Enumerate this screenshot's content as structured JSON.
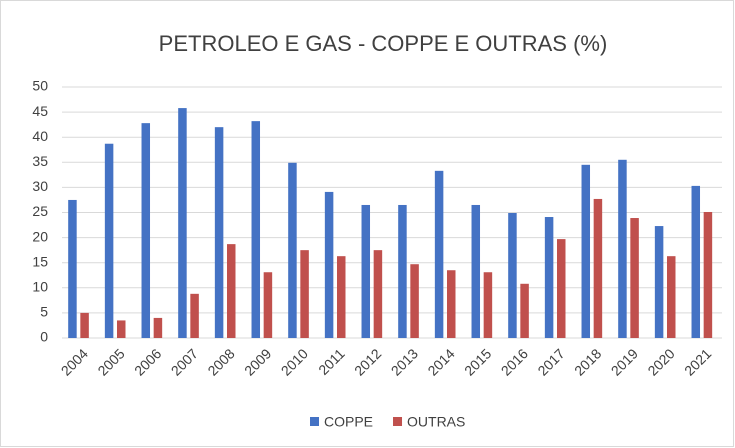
{
  "chart_data": {
    "type": "bar",
    "title": "PETROLEO E GAS - COPPE E OUTRAS (%)",
    "categories": [
      "2004",
      "2005",
      "2006",
      "2007",
      "2008",
      "2009",
      "2010",
      "2011",
      "2012",
      "2013",
      "2014",
      "2015",
      "2016",
      "2017",
      "2018",
      "2019",
      "2020",
      "2021"
    ],
    "series": [
      {
        "name": "COPPE",
        "color": "#4472c4",
        "values": [
          27.5,
          38.7,
          42.8,
          45.8,
          42,
          43.2,
          34.9,
          29.1,
          26.5,
          26.5,
          33.3,
          26.5,
          24.9,
          24.1,
          34.5,
          35.5,
          22.3,
          30.3
        ]
      },
      {
        "name": "OUTRAS",
        "color": "#c0504d",
        "values": [
          5,
          3.5,
          4,
          8.8,
          18.7,
          13.1,
          17.5,
          16.3,
          17.5,
          14.7,
          13.5,
          13.1,
          10.8,
          19.7,
          27.7,
          23.9,
          16.3,
          25.1
        ]
      }
    ],
    "ylim": [
      0,
      50
    ],
    "yticks": [
      0,
      5,
      10,
      15,
      20,
      25,
      30,
      35,
      40,
      45,
      50
    ],
    "grid": true,
    "legend": "bottom"
  }
}
